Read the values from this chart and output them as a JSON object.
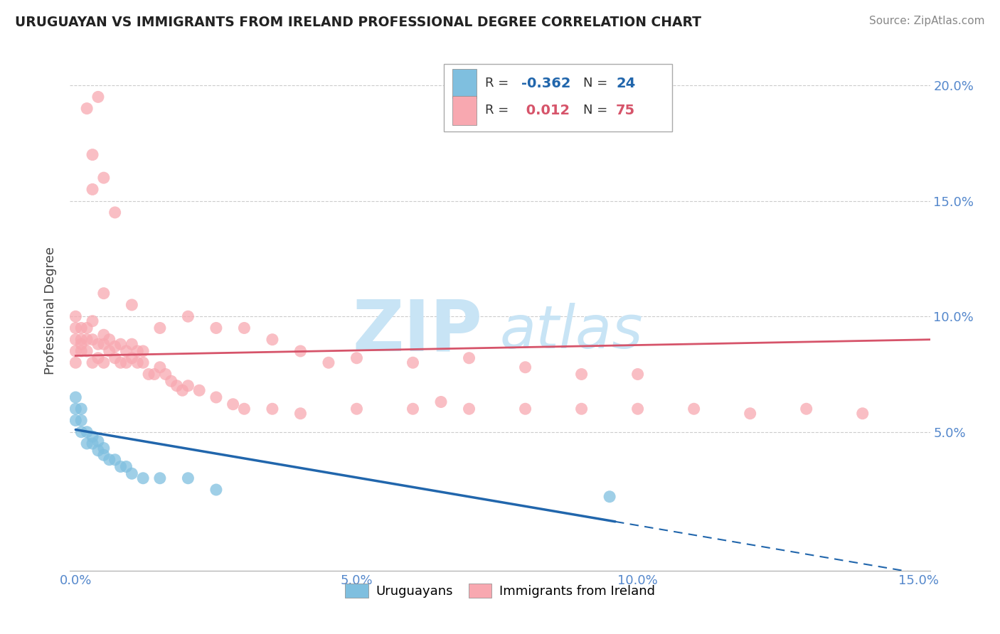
{
  "title": "URUGUAYAN VS IMMIGRANTS FROM IRELAND PROFESSIONAL DEGREE CORRELATION CHART",
  "source_text": "Source: ZipAtlas.com",
  "ylabel": "Professional Degree",
  "xlim": [
    -0.001,
    0.152
  ],
  "ylim": [
    -0.01,
    0.215
  ],
  "xticks": [
    0.0,
    0.05,
    0.1,
    0.15
  ],
  "xtick_labels": [
    "0.0%",
    "5.0%",
    "10.0%",
    "15.0%"
  ],
  "yticks": [
    0.05,
    0.1,
    0.15,
    0.2
  ],
  "ytick_labels": [
    "5.0%",
    "10.0%",
    "15.0%",
    "20.0%"
  ],
  "legend_R1": "-0.362",
  "legend_N1": "24",
  "legend_R2": "0.012",
  "legend_N2": "75",
  "color_uruguayan": "#7fbfdf",
  "color_ireland": "#f8a8b0",
  "trendline_color_uruguayan": "#2166ac",
  "trendline_color_ireland": "#d6546a",
  "watermark_zip": "ZIP",
  "watermark_atlas": "atlas",
  "watermark_color": "#c8e4f5",
  "uru_trend_x0": 0.0,
  "uru_trend_y0": 0.051,
  "uru_trend_x1": 0.152,
  "uru_trend_y1": -0.012,
  "ire_trend_x0": 0.0,
  "ire_trend_y0": 0.083,
  "ire_trend_x1": 0.152,
  "ire_trend_y1": 0.09,
  "uruguayan_x": [
    0.0,
    0.0,
    0.0,
    0.001,
    0.001,
    0.001,
    0.002,
    0.002,
    0.003,
    0.003,
    0.004,
    0.004,
    0.005,
    0.005,
    0.006,
    0.007,
    0.008,
    0.009,
    0.01,
    0.012,
    0.015,
    0.02,
    0.025,
    0.095
  ],
  "uruguayan_y": [
    0.055,
    0.06,
    0.065,
    0.05,
    0.055,
    0.06,
    0.045,
    0.05,
    0.045,
    0.048,
    0.042,
    0.046,
    0.04,
    0.043,
    0.038,
    0.038,
    0.035,
    0.035,
    0.032,
    0.03,
    0.03,
    0.03,
    0.025,
    0.022
  ],
  "ireland_x": [
    0.0,
    0.0,
    0.0,
    0.0,
    0.0,
    0.001,
    0.001,
    0.001,
    0.001,
    0.002,
    0.002,
    0.002,
    0.003,
    0.003,
    0.003,
    0.004,
    0.004,
    0.005,
    0.005,
    0.005,
    0.006,
    0.006,
    0.007,
    0.007,
    0.008,
    0.008,
    0.009,
    0.009,
    0.01,
    0.01,
    0.011,
    0.011,
    0.012,
    0.012,
    0.013,
    0.014,
    0.015,
    0.016,
    0.017,
    0.018,
    0.019,
    0.02,
    0.022,
    0.025,
    0.028,
    0.03,
    0.035,
    0.04,
    0.05,
    0.06,
    0.065,
    0.07,
    0.08,
    0.09,
    0.1,
    0.11,
    0.12,
    0.13,
    0.14,
    0.005,
    0.01,
    0.015,
    0.02,
    0.025,
    0.03,
    0.035,
    0.04,
    0.045,
    0.05,
    0.06,
    0.07,
    0.08,
    0.09,
    0.1
  ],
  "ireland_y": [
    0.085,
    0.09,
    0.095,
    0.1,
    0.08,
    0.088,
    0.085,
    0.09,
    0.095,
    0.085,
    0.09,
    0.095,
    0.08,
    0.09,
    0.098,
    0.082,
    0.088,
    0.08,
    0.088,
    0.092,
    0.085,
    0.09,
    0.082,
    0.087,
    0.08,
    0.088,
    0.08,
    0.085,
    0.082,
    0.088,
    0.08,
    0.085,
    0.08,
    0.085,
    0.075,
    0.075,
    0.078,
    0.075,
    0.072,
    0.07,
    0.068,
    0.07,
    0.068,
    0.065,
    0.062,
    0.06,
    0.06,
    0.058,
    0.06,
    0.06,
    0.063,
    0.06,
    0.06,
    0.06,
    0.06,
    0.06,
    0.058,
    0.06,
    0.058,
    0.11,
    0.105,
    0.095,
    0.1,
    0.095,
    0.095,
    0.09,
    0.085,
    0.08,
    0.082,
    0.08,
    0.082,
    0.078,
    0.075,
    0.075
  ],
  "ireland_high_x": [
    0.002,
    0.003,
    0.003,
    0.004,
    0.005,
    0.007
  ],
  "ireland_high_y": [
    0.19,
    0.17,
    0.155,
    0.195,
    0.16,
    0.145
  ]
}
